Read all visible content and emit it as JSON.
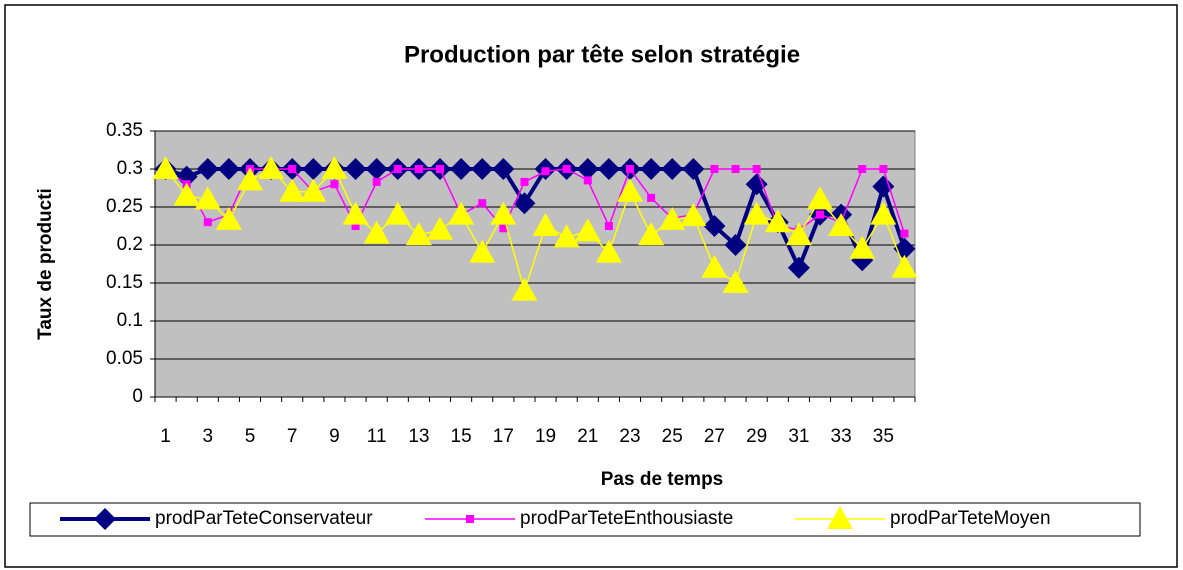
{
  "chart_data": {
    "type": "line",
    "title": "Production par tête selon stratégie",
    "x_label": "Pas de temps",
    "y_label": "Taux de producti",
    "categories": [
      1,
      null,
      3,
      null,
      5,
      null,
      7,
      null,
      9,
      null,
      11,
      null,
      13,
      null,
      15,
      null,
      17,
      null,
      19,
      null,
      21,
      null,
      23,
      null,
      25,
      null,
      27,
      null,
      29,
      null,
      31,
      null,
      33,
      null,
      35,
      null
    ],
    "ylim": [
      0,
      0.35
    ],
    "yticks": [
      0,
      0.05,
      0.1,
      0.15,
      0.2,
      0.25,
      0.3,
      0.35
    ],
    "grid": true,
    "legend": "bottom",
    "series": [
      {
        "name": "prodParTeteConservateur",
        "color": "#000080",
        "marker": "diamond",
        "values": [
          0.3,
          0.29,
          0.3,
          0.3,
          0.3,
          0.3,
          0.3,
          0.3,
          0.3,
          0.3,
          0.3,
          0.3,
          0.3,
          0.3,
          0.3,
          0.3,
          0.3,
          0.255,
          0.3,
          0.3,
          0.3,
          0.3,
          0.3,
          0.3,
          0.3,
          0.3,
          0.225,
          0.2,
          0.28,
          0.23,
          0.17,
          0.24,
          0.24,
          0.18,
          0.277,
          0.195
        ]
      },
      {
        "name": "prodParTeteEnthousiaste",
        "color": "#ff00ff",
        "marker": "square",
        "values": [
          0.3,
          0.28,
          0.23,
          0.24,
          0.3,
          0.3,
          0.3,
          0.27,
          0.28,
          0.225,
          0.283,
          0.3,
          0.3,
          0.3,
          0.24,
          0.255,
          0.222,
          0.283,
          0.297,
          0.3,
          0.285,
          0.225,
          0.3,
          0.262,
          0.235,
          0.24,
          0.3,
          0.3,
          0.3,
          0.225,
          0.22,
          0.24,
          0.23,
          0.3,
          0.3,
          0.215
        ]
      },
      {
        "name": "prodParTeteMoyen",
        "color": "#ffff00",
        "marker": "triangle",
        "values": [
          0.3,
          0.265,
          0.26,
          0.233,
          0.285,
          0.3,
          0.27,
          0.27,
          0.3,
          0.24,
          0.215,
          0.24,
          0.213,
          0.22,
          0.24,
          0.19,
          0.24,
          0.14,
          0.225,
          0.21,
          0.218,
          0.19,
          0.27,
          0.213,
          0.233,
          0.238,
          0.17,
          0.15,
          0.24,
          0.23,
          0.213,
          0.26,
          0.225,
          0.195,
          0.24,
          0.17
        ]
      }
    ]
  }
}
